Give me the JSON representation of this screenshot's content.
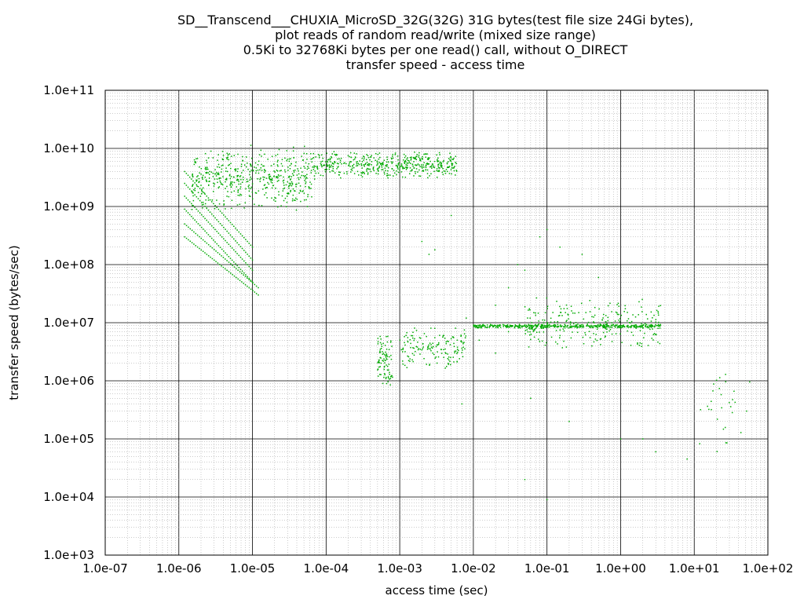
{
  "chart_data": {
    "type": "scatter",
    "title_lines": [
      "SD__Transcend___CHUXIA_MicroSD_32G(32G) 31G bytes(test file size 24Gi bytes),",
      "plot reads of random read/write (mixed size range)",
      "0.5Ki to 32768Ki bytes per one read() call, without O_DIRECT",
      "transfer speed - access time"
    ],
    "xlabel": "access time (sec)",
    "ylabel": "transfer speed (bytes/sec)",
    "x_scale": "log",
    "y_scale": "log",
    "xlim": [
      1e-07,
      100
    ],
    "ylim": [
      1000,
      100000000000
    ],
    "x_ticks": [
      "1.0e-07",
      "1.0e-06",
      "1.0e-05",
      "1.0e-04",
      "1.0e-03",
      "1.0e-02",
      "1.0e-01",
      "1.0e+00",
      "1.0e+01",
      "1.0e+02"
    ],
    "y_ticks": [
      "1.0e+03",
      "1.0e+04",
      "1.0e+05",
      "1.0e+06",
      "1.0e+07",
      "1.0e+08",
      "1.0e+09",
      "1.0e+10",
      "1.0e+11"
    ],
    "grid": true,
    "point_color": "#00aa00",
    "clusters": [
      {
        "x_range": [
          1.5e-06,
          7e-05
        ],
        "y_range": [
          800000000,
          12000000000
        ],
        "count": 520
      },
      {
        "x_range": [
          7e-05,
          0.006
        ],
        "y_range": [
          3000000000,
          9000000000
        ],
        "count": 480
      },
      {
        "x_range": [
          0.0005,
          0.0008
        ],
        "y_range": [
          700000,
          7000000
        ],
        "count": 90
      },
      {
        "x_range": [
          0.001,
          0.008
        ],
        "y_range": [
          1500000,
          9000000
        ],
        "count": 160
      },
      {
        "x_range": [
          0.01,
          3.5
        ],
        "y_range": [
          8000000,
          9500000
        ],
        "count": 400
      },
      {
        "x_range": [
          0.05,
          3.5
        ],
        "y_range": [
          3000000,
          30000000
        ],
        "count": 260
      },
      {
        "x_range": [
          10,
          60
        ],
        "y_range": [
          50000,
          1500000
        ],
        "count": 30
      }
    ],
    "diagonal_series": [
      {
        "start": [
          1.2e-06,
          4000000000
        ],
        "end": [
          1e-05,
          200000000
        ]
      },
      {
        "start": [
          1.2e-06,
          2500000000
        ],
        "end": [
          1e-05,
          120000000
        ]
      },
      {
        "start": [
          1.2e-06,
          1500000000
        ],
        "end": [
          1e-05,
          80000000
        ]
      },
      {
        "start": [
          1.2e-06,
          900000000
        ],
        "end": [
          1e-05,
          50000000
        ]
      },
      {
        "start": [
          1.2e-06,
          500000000
        ],
        "end": [
          1.2e-05,
          40000000
        ]
      },
      {
        "start": [
          1.2e-06,
          300000000
        ],
        "end": [
          1.2e-05,
          30000000
        ]
      }
    ],
    "scattered_points": [
      [
        0.005,
        700000000
      ],
      [
        0.002,
        250000000
      ],
      [
        0.003,
        180000000
      ],
      [
        0.0025,
        150000000
      ],
      [
        0.04,
        100000000
      ],
      [
        0.05,
        80000000
      ],
      [
        0.08,
        300000000
      ],
      [
        0.1,
        400000000
      ],
      [
        0.15,
        200000000
      ],
      [
        0.3,
        150000000
      ],
      [
        0.5,
        60000000
      ],
      [
        0.02,
        20000000
      ],
      [
        0.03,
        40000000
      ],
      [
        0.007,
        400000
      ],
      [
        0.05,
        20000
      ],
      [
        0.1,
        9000
      ],
      [
        0.06,
        500000
      ],
      [
        0.2,
        200000
      ],
      [
        1.0,
        100000
      ],
      [
        2.0,
        100000
      ],
      [
        3.0,
        60000
      ],
      [
        8.0,
        45000
      ],
      [
        0.012,
        5000000
      ],
      [
        0.02,
        3000000
      ],
      [
        0.03,
        7000000
      ],
      [
        0.008,
        12000000
      ]
    ]
  }
}
